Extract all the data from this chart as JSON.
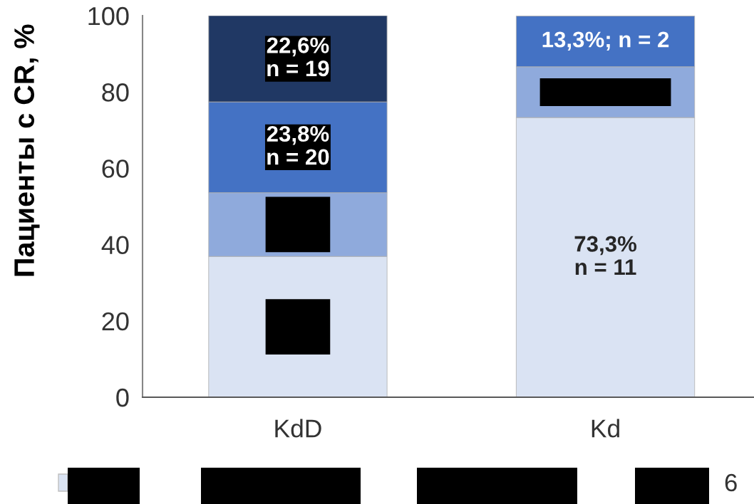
{
  "chart_data": {
    "type": "bar",
    "stacked": true,
    "ylabel": "Пациенты с CR, %",
    "categories": [
      "KdD",
      "Kd"
    ],
    "series": [
      {
        "color": "#dae3f3",
        "values": [
          36.9,
          73.3
        ],
        "value_labels": [
          null,
          "73,3%\nn = 11"
        ]
      },
      {
        "color": "#8faadc",
        "values": [
          16.7,
          13.3
        ],
        "value_labels": [
          null,
          null
        ]
      },
      {
        "color": "#4472c4",
        "values": [
          23.8,
          13.3
        ],
        "value_labels": [
          "23,8%\nn = 20",
          "13,3%; n = 2"
        ]
      },
      {
        "color": "#203864",
        "values": [
          22.6,
          null
        ],
        "value_labels": [
          "22,6%\nn = 19",
          null
        ]
      }
    ],
    "ylim": [
      0,
      100
    ],
    "yticks": [
      0,
      20,
      40,
      60,
      80,
      100
    ],
    "annotations": [
      "6"
    ]
  }
}
